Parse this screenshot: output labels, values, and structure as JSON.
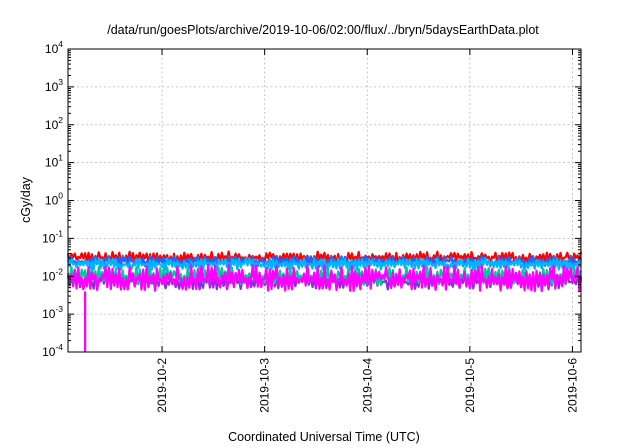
{
  "chart_data": {
    "type": "line",
    "title": "/data/run/goesPlots/archive/2019-10-06/02:00/flux/../bryn/5daysEarthData.plot",
    "xlabel": "Coordinated Universal Time (UTC)",
    "ylabel": "cGy/day",
    "yscale": "log",
    "ylim": [
      0.0001,
      10000
    ],
    "xlim": [
      "2019-10-01T02:00",
      "2019-10-06T02:00"
    ],
    "y_ticks": [
      {
        "base": "10",
        "exp": "-4",
        "value": 0.0001
      },
      {
        "base": "10",
        "exp": "-3",
        "value": 0.001
      },
      {
        "base": "10",
        "exp": "-2",
        "value": 0.01
      },
      {
        "base": "10",
        "exp": "-1",
        "value": 0.1
      },
      {
        "base": "10",
        "exp": "0",
        "value": 1
      },
      {
        "base": "10",
        "exp": "1",
        "value": 10
      },
      {
        "base": "10",
        "exp": "2",
        "value": 100
      },
      {
        "base": "10",
        "exp": "3",
        "value": 1000
      },
      {
        "base": "10",
        "exp": "4",
        "value": 10000
      }
    ],
    "x_ticks": [
      "2019-10-2",
      "2019-10-3",
      "2019-10-4",
      "2019-10-5",
      "2019-10-6"
    ],
    "grid": true,
    "legend": "none",
    "series": [
      {
        "color": "#ff0000",
        "level_lo": 0.022,
        "level_hi": 0.045
      },
      {
        "color": "#8a2be2",
        "level_lo": 0.0045,
        "level_hi": 0.012
      },
      {
        "color": "#00c8a0",
        "level_lo": 0.006,
        "level_hi": 0.018
      },
      {
        "color": "#1e66ff",
        "level_lo": 0.018,
        "level_hi": 0.035
      },
      {
        "color": "#00b4ff",
        "level_lo": 0.015,
        "level_hi": 0.03
      },
      {
        "color": "#ff00ff",
        "level_lo": 0.004,
        "level_hi": 0.02
      }
    ],
    "dropout": {
      "date": "2019-10-01T06:00",
      "series_color": "#ff00ff",
      "value_below": 0.0001
    }
  }
}
